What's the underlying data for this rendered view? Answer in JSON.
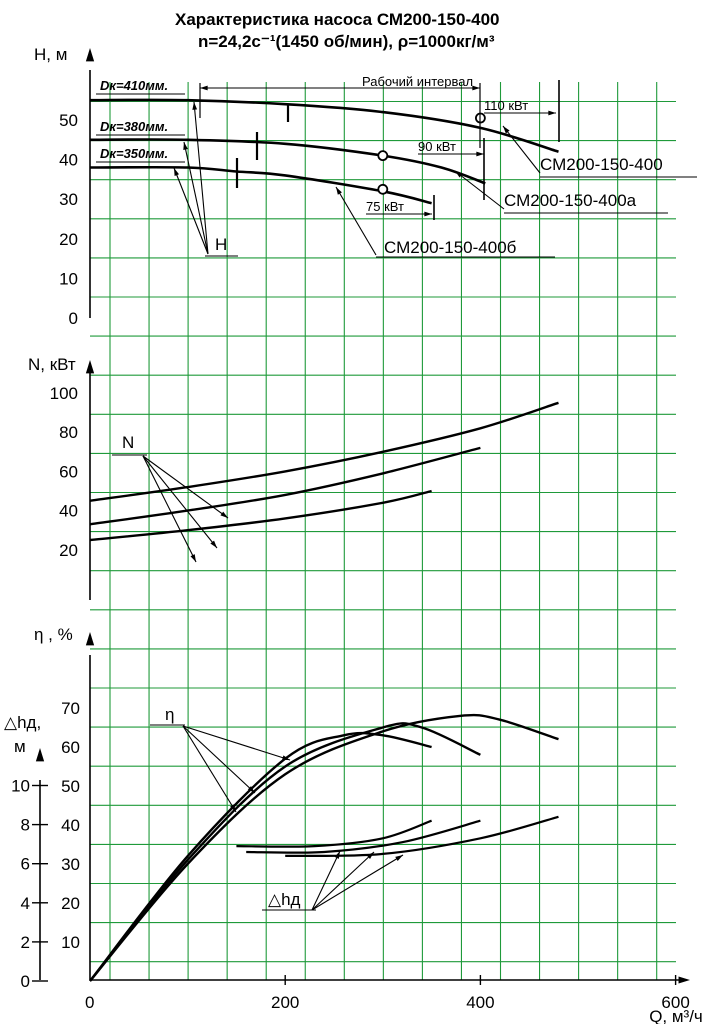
{
  "title_line1": "Характеристика насоса СМ200-150-400",
  "title_line2": "n=24,2с⁻¹(1450 об/мин), ρ=1000кг/м³",
  "chart_data": {
    "type": "line",
    "x": {
      "label": "Q, м³/ч",
      "ticks": [
        0,
        200,
        400,
        600
      ],
      "range": [
        0,
        600
      ]
    },
    "grid": true,
    "panels": {
      "head": {
        "ylabel": "Н, м",
        "ticks": [
          0,
          10,
          20,
          30,
          40,
          50
        ],
        "series": [
          {
            "name": "СМ200-150-400",
            "impeller": "Dк=410мм.",
            "power_label": "110 кВт",
            "points": [
              [
                0,
                55
              ],
              [
                100,
                55
              ],
              [
                200,
                54
              ],
              [
                300,
                52
              ],
              [
                400,
                48
              ],
              [
                480,
                42
              ]
            ]
          },
          {
            "name": "СМ200-150-400а",
            "impeller": "Dк=380мм.",
            "power_label": "90 кВт",
            "points": [
              [
                0,
                45
              ],
              [
                100,
                45
              ],
              [
                200,
                44
              ],
              [
                300,
                41
              ],
              [
                360,
                38
              ],
              [
                405,
                34
              ]
            ]
          },
          {
            "name": "СМ200-150-400б",
            "impeller": "Dк=350мм.",
            "power_label": "75 кВт",
            "points": [
              [
                0,
                38
              ],
              [
                100,
                38
              ],
              [
                150,
                37
              ],
              [
                200,
                36
              ],
              [
                300,
                32
              ],
              [
                350,
                29
              ]
            ]
          }
        ],
        "work_range_label": "Рабочий интервал",
        "curve_label": "Н"
      },
      "power": {
        "ylabel": "N, кВт",
        "ticks": [
          20,
          40,
          60,
          80,
          100
        ],
        "curve_label": "N",
        "series": [
          {
            "name": "СМ200-150-400",
            "points": [
              [
                0,
                45
              ],
              [
                100,
                52
              ],
              [
                200,
                60
              ],
              [
                300,
                70
              ],
              [
                400,
                82
              ],
              [
                480,
                95
              ]
            ]
          },
          {
            "name": "СМ200-150-400а",
            "points": [
              [
                0,
                33
              ],
              [
                100,
                40
              ],
              [
                200,
                48
              ],
              [
                300,
                59
              ],
              [
                400,
                72
              ]
            ]
          },
          {
            "name": "СМ200-150-400б",
            "points": [
              [
                0,
                25
              ],
              [
                100,
                30
              ],
              [
                200,
                36
              ],
              [
                300,
                44
              ],
              [
                350,
                50
              ]
            ]
          }
        ]
      },
      "efficiency": {
        "ylabel": "η , %",
        "ticks": [
          10,
          20,
          30,
          40,
          50,
          60,
          70
        ],
        "curve_label": "η",
        "series": [
          {
            "name": "СМ200-150-400",
            "points": [
              [
                0,
                0
              ],
              [
                100,
                30
              ],
              [
                200,
                53
              ],
              [
                300,
                64
              ],
              [
                380,
                68
              ],
              [
                420,
                67
              ],
              [
                480,
                62
              ]
            ]
          },
          {
            "name": "СМ200-150-400а",
            "points": [
              [
                0,
                0
              ],
              [
                100,
                31
              ],
              [
                200,
                55
              ],
              [
                300,
                65
              ],
              [
                340,
                65
              ],
              [
                400,
                58
              ]
            ]
          },
          {
            "name": "СМ200-150-400б",
            "points": [
              [
                0,
                0
              ],
              [
                100,
                32
              ],
              [
                200,
                57
              ],
              [
                260,
                63
              ],
              [
                300,
                63
              ],
              [
                350,
                60
              ]
            ]
          }
        ]
      },
      "npsh": {
        "ylabel": "△hд, м",
        "ticks": [
          0,
          2,
          4,
          6,
          8,
          10
        ],
        "curve_label": "△hд",
        "series": [
          {
            "name": "СМ200-150-400",
            "points": [
              [
                200,
                6.4
              ],
              [
                300,
                6.5
              ],
              [
                400,
                7.3
              ],
              [
                480,
                8.4
              ]
            ]
          },
          {
            "name": "СМ200-150-400а",
            "points": [
              [
                160,
                6.6
              ],
              [
                240,
                6.6
              ],
              [
                320,
                7.1
              ],
              [
                400,
                8.2
              ]
            ]
          },
          {
            "name": "СМ200-150-400б",
            "points": [
              [
                150,
                6.9
              ],
              [
                230,
                6.9
              ],
              [
                300,
                7.3
              ],
              [
                350,
                8.2
              ]
            ]
          }
        ]
      }
    }
  }
}
